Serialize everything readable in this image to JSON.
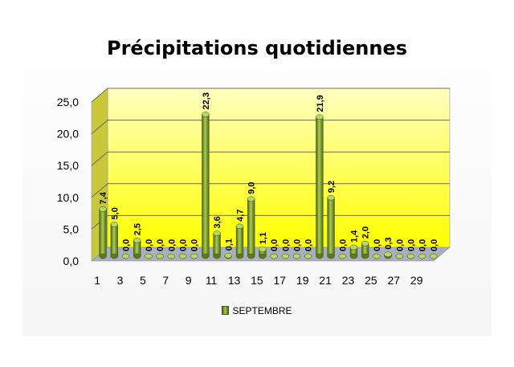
{
  "chart_data": {
    "type": "bar",
    "title": "Précipitations quotidiennes",
    "categories": [
      "1",
      "2",
      "3",
      "4",
      "5",
      "6",
      "7",
      "8",
      "9",
      "10",
      "11",
      "12",
      "13",
      "14",
      "15",
      "16",
      "17",
      "18",
      "19",
      "20",
      "21",
      "22",
      "23",
      "24",
      "25",
      "26",
      "27",
      "28",
      "29",
      "30"
    ],
    "x_tick_labels": [
      "1",
      "3",
      "5",
      "7",
      "9",
      "11",
      "13",
      "15",
      "17",
      "19",
      "21",
      "23",
      "25",
      "27",
      "29"
    ],
    "series": [
      {
        "name": "SEPTEMBRE",
        "values": [
          7.4,
          5.0,
          0.0,
          2.5,
          0.0,
          0.0,
          0.0,
          0.0,
          0.0,
          22.3,
          3.6,
          0.1,
          4.7,
          9.0,
          1.1,
          0.0,
          0.0,
          0.0,
          0.0,
          21.9,
          9.2,
          0.0,
          1.4,
          2.0,
          0.0,
          0.3,
          0.0,
          0.0,
          0.0,
          0.0
        ],
        "labels": [
          "7,4",
          "5,0",
          "0,0",
          "2,5",
          "0,0",
          "0,0",
          "0,0",
          "0,0",
          "0,0",
          "22,3",
          "3,6",
          "0,1",
          "4,7",
          "9,0",
          "1,1",
          "0,0",
          "0,0",
          "0,0",
          "0,0",
          "21,9",
          "9,2",
          "0,0",
          "1,4",
          "2,0",
          "0,0",
          "0,3",
          "0,0",
          "0,0",
          "0,0",
          "0,0"
        ]
      }
    ],
    "ylim": [
      0,
      25
    ],
    "y_ticks": [
      "0,0",
      "5,0",
      "10,0",
      "15,0",
      "20,0",
      "25,0"
    ],
    "grid": true,
    "legend_position": "bottom",
    "colors": {
      "bar_dark": "#4a6414",
      "bar_light": "#a9cc52",
      "back_wall_top": "#ffffb0",
      "back_wall_bottom": "#ffff00",
      "side_wall": "#c8c83a",
      "floor": "#a8b0bc"
    }
  }
}
